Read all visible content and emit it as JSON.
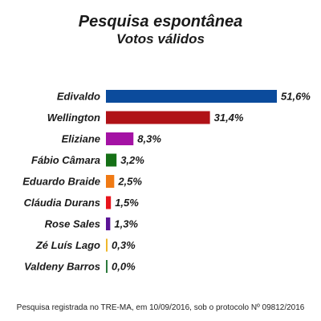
{
  "chart_data": {
    "type": "bar",
    "orientation": "horizontal",
    "title": "Pesquisa espontânea",
    "subtitle": "Votos válidos",
    "categories": [
      "Edivaldo",
      "Wellington",
      "Eliziane",
      "Fábio Câmara",
      "Eduardo Braide",
      "Cláudia Durans",
      "Rose Sales",
      "Zé Luís Lago",
      "Valdeny Barros"
    ],
    "values": [
      51.6,
      31.4,
      8.3,
      3.2,
      2.5,
      1.5,
      1.3,
      0.3,
      0.0
    ],
    "value_labels": [
      "51,6%",
      "31,4%",
      "8,3%",
      "3,2%",
      "2,5%",
      "1,5%",
      "1,3%",
      "0,3%",
      "0,0%"
    ],
    "colors": [
      "#0b4b9c",
      "#b01217",
      "#a412a4",
      "#157016",
      "#f07a14",
      "#e8141c",
      "#5b1496",
      "#efb72b",
      "#2c7a3c"
    ],
    "xlim": [
      0,
      51.6
    ],
    "grid": false,
    "legend": "none"
  },
  "footer": {
    "text": "Pesquisa registrada no TRE-MA, em 10/09/2016, sob o protocolo Nº 09812/2016"
  }
}
